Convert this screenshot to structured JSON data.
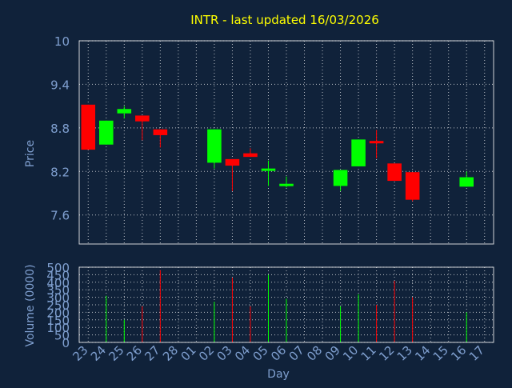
{
  "chart_data": {
    "type": "candlestick",
    "title": "INTR - last updated 16/03/2026",
    "xlabel": "Day",
    "colors": {
      "background": "#10223a",
      "plot_border": "#ffffff",
      "grid": "#ffffff",
      "title": "#ffff00",
      "axis_text": "#7f9fcf",
      "up": "#00ff00",
      "down": "#ff0000"
    },
    "x_ticks": [
      "23",
      "24",
      "25",
      "26",
      "27",
      "28",
      "01",
      "02",
      "03",
      "04",
      "05",
      "06",
      "07",
      "08",
      "09",
      "10",
      "11",
      "12",
      "13",
      "14",
      "15",
      "16",
      "17"
    ],
    "price_panel": {
      "ylabel": "Price",
      "ylim": [
        7.2,
        10.0
      ],
      "yticks": [
        7.6,
        8.2,
        8.8,
        9.4,
        10
      ],
      "ytick_labels": [
        "7.6",
        "8.2",
        "8.8",
        "9.4",
        "10"
      ],
      "grid": true
    },
    "volume_panel": {
      "ylabel": "Volume (0000)",
      "ylim": [
        0,
        500
      ],
      "yticks": [
        0,
        50,
        100,
        150,
        200,
        250,
        300,
        350,
        400,
        450,
        500
      ],
      "ytick_labels": [
        "0",
        "50",
        "100",
        "150",
        "200",
        "250",
        "300",
        "350",
        "400",
        "450",
        "500"
      ],
      "grid": true
    },
    "candles": [
      {
        "day": "23",
        "open": 9.12,
        "close": 8.5,
        "high": 9.12,
        "low": 8.5,
        "volume": 0
      },
      {
        "day": "24",
        "open": 8.57,
        "close": 8.9,
        "high": 8.9,
        "low": 8.57,
        "volume": 310
      },
      {
        "day": "25",
        "open": 9.0,
        "close": 9.06,
        "high": 9.1,
        "low": 8.93,
        "volume": 150
      },
      {
        "day": "26",
        "open": 8.97,
        "close": 8.89,
        "high": 8.97,
        "low": 8.63,
        "volume": 240
      },
      {
        "day": "27",
        "open": 8.78,
        "close": 8.7,
        "high": 8.78,
        "low": 8.53,
        "volume": 480
      },
      {
        "day": "02",
        "open": 8.32,
        "close": 8.78,
        "high": 8.78,
        "low": 8.24,
        "volume": 270
      },
      {
        "day": "03",
        "open": 8.37,
        "close": 8.28,
        "high": 8.37,
        "low": 7.93,
        "volume": 430
      },
      {
        "day": "04",
        "open": 8.45,
        "close": 8.4,
        "high": 8.52,
        "low": 8.4,
        "volume": 240
      },
      {
        "day": "05",
        "open": 8.23,
        "close": 8.24,
        "high": 8.35,
        "low": 8.0,
        "volume": 450
      },
      {
        "day": "06",
        "open": 8.0,
        "close": 8.03,
        "high": 8.13,
        "low": 7.98,
        "volume": 290
      },
      {
        "day": "09",
        "open": 8.0,
        "close": 8.22,
        "high": 8.22,
        "low": 7.93,
        "volume": 240
      },
      {
        "day": "10",
        "open": 8.27,
        "close": 8.64,
        "high": 8.64,
        "low": 8.27,
        "volume": 320
      },
      {
        "day": "11",
        "open": 8.62,
        "close": 8.59,
        "high": 8.77,
        "low": 8.38,
        "volume": 250
      },
      {
        "day": "12",
        "open": 8.31,
        "close": 8.07,
        "high": 8.31,
        "low": 8.07,
        "volume": 410
      },
      {
        "day": "13",
        "open": 8.19,
        "close": 7.81,
        "high": 8.19,
        "low": 7.79,
        "volume": 300
      },
      {
        "day": "16",
        "open": 7.99,
        "close": 8.12,
        "high": 8.2,
        "low": 7.99,
        "volume": 200
      }
    ]
  }
}
